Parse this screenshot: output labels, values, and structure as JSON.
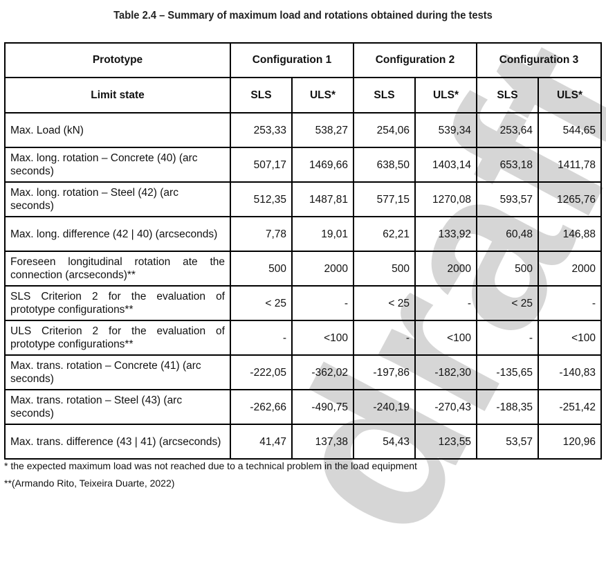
{
  "title": "Table 2.4 – Summary of maximum load and rotations obtained during the tests",
  "watermark": "draft",
  "header": {
    "prototype_label": "Prototype",
    "configurations": [
      "Configuration 1",
      "Configuration 2",
      "Configuration 3"
    ],
    "limit_state_label": "Limit state",
    "sub": [
      "SLS",
      "ULS*",
      "SLS",
      "ULS*",
      "SLS",
      "ULS*"
    ]
  },
  "rows": [
    {
      "label": "Max. Load (kN)",
      "values": [
        "253,33",
        "538,27",
        "254,06",
        "539,34",
        "253,64",
        "544,65"
      ]
    },
    {
      "label": "Max. long. rotation – Concrete (40) (arc seconds)",
      "values": [
        "507,17",
        "1469,66",
        "638,50",
        "1403,14",
        "653,18",
        "1411,78"
      ]
    },
    {
      "label": "Max. long. rotation – Steel (42) (arc seconds)",
      "values": [
        "512,35",
        "1487,81",
        "577,15",
        "1270,08",
        "593,57",
        "1265,76"
      ]
    },
    {
      "label": "Max. long. difference (42 | 40) (arcseconds)",
      "values": [
        "7,78",
        "19,01",
        "62,21",
        "133,92",
        "60,48",
        "146,88"
      ]
    },
    {
      "label": "Foreseen longitudinal rotation ate the connection (arcseconds)**",
      "values": [
        "500",
        "2000",
        "500",
        "2000",
        "500",
        "2000"
      ]
    },
    {
      "label": "SLS Criterion 2 for the evaluation of prototype configurations**",
      "values": [
        "< 25",
        "-",
        "< 25",
        "-",
        "< 25",
        "-"
      ]
    },
    {
      "label": "ULS Criterion 2 for the evaluation of prototype configurations**",
      "values": [
        "-",
        "<100",
        "-",
        "<100",
        "-",
        "<100"
      ]
    },
    {
      "label": "Max. trans. rotation – Concrete (41) (arc seconds)",
      "values": [
        "-222,05",
        "-362,02",
        "-197,86",
        "-182,30",
        "-135,65",
        "-140,83"
      ]
    },
    {
      "label": "Max. trans. rotation – Steel (43) (arc seconds)",
      "values": [
        "-262,66",
        "-490,75",
        "-240,19",
        "-270,43",
        "-188,35",
        "-251,42"
      ]
    },
    {
      "label": "Max. trans. difference (43 | 41) (arcseconds)",
      "values": [
        "41,47",
        "137,38",
        "54,43",
        "123,55",
        "53,57",
        "120,96"
      ]
    }
  ],
  "footnotes": [
    "* the expected maximum load was not reached due to a technical problem in the load equipment",
    "**(Armando Rito, Teixeira Duarte, 2022)"
  ]
}
